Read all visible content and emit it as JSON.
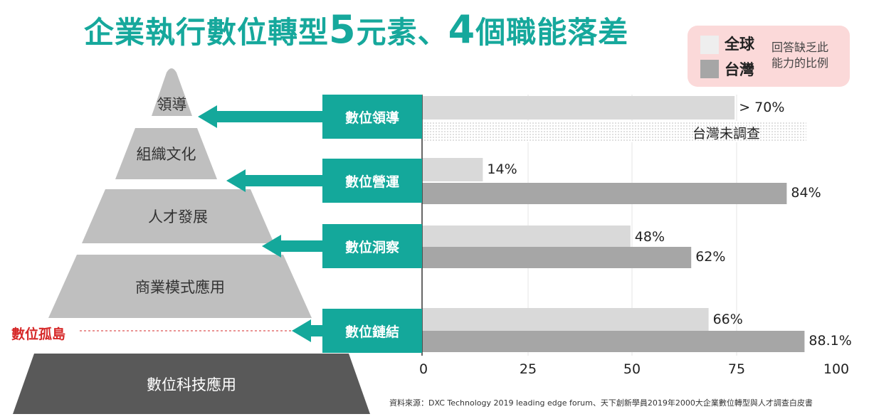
{
  "title": {
    "part1": "企業執行數位轉型",
    "num1": "5",
    "part2": "元素、",
    "num2": "4",
    "part3": "個職能落差"
  },
  "legend": {
    "global": "全球",
    "taiwan": "台灣",
    "note_line1": "回答缺乏此",
    "note_line2": "能力的比例",
    "global_color": "#eeeeee",
    "taiwan_color": "#a6a6a6"
  },
  "pyramid": {
    "tiers": [
      "領導",
      "組織文化",
      "人才發展",
      "商業模式應用",
      "數位科技應用"
    ],
    "gap_label": "數位孤島"
  },
  "colors": {
    "teal": "#14a89b",
    "light_tier": "#bfbfbf",
    "dark_tier": "#595959",
    "global_bar": "#d9d9d9",
    "taiwan_bar": "#a6a6a6",
    "gap": "#d62828"
  },
  "chart_data": {
    "type": "bar",
    "orientation": "horizontal",
    "categories": [
      "數位領導",
      "數位營運",
      "數位洞察",
      "數位鏈結"
    ],
    "series": [
      {
        "name": "全球",
        "values": [
          72,
          14,
          48,
          66
        ],
        "labels": [
          "> 70%",
          "14%",
          "48%",
          "66%"
        ]
      },
      {
        "name": "台灣",
        "values": [
          null,
          84,
          62,
          88.1
        ],
        "labels": [
          "台灣未調查",
          "84%",
          "62%",
          "88.1%"
        ]
      }
    ],
    "xlim": [
      0,
      100
    ],
    "xticks": [
      "0",
      "25",
      "50",
      "75",
      "100"
    ],
    "grid": true
  },
  "source": "資料來源：DXC Technology 2019 leading edge forum、天下創新學員2019年2000大企業數位轉型與人才調查白皮書"
}
